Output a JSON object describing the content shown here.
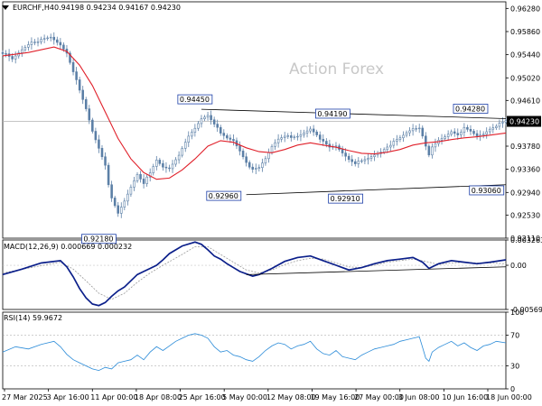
{
  "watermark": "Action Forex",
  "chart_data": [
    {
      "type": "candlestick",
      "symbol_header": "EURCHF,H4",
      "ohlc_header": "0.94198 0.94234 0.94167 0.94230",
      "ylim": [
        0.9211,
        0.964
      ],
      "y_ticks": [
        "0.96280",
        "0.95860",
        "0.95440",
        "0.95020",
        "0.94610",
        "0.94190",
        "0.93780",
        "0.93360",
        "0.92940",
        "0.92530",
        "0.92110"
      ],
      "current_price_label": "0.94230",
      "x_ticks": [
        "27 Mar 2025",
        "3 Apr 16:00",
        "11 Apr 00:00",
        "18 Apr 08:00",
        "25 Apr 16:00",
        "5 May 00:00",
        "12 May 08:00",
        "19 May 16:00",
        "27 May 00:00",
        "3 Jun 08:00",
        "10 Jun 16:00",
        "18 Jun 00:00"
      ],
      "price_labels": [
        "0.94450",
        "0.94190",
        "0.94280",
        "0.92960",
        "0.92910",
        "0.93060",
        "0.92180"
      ],
      "close_path": [
        [
          0,
          0.9548
        ],
        [
          3,
          0.9535
        ],
        [
          6,
          0.9553
        ],
        [
          9,
          0.9568
        ],
        [
          12,
          0.957
        ],
        [
          15,
          0.9575
        ],
        [
          18,
          0.9562
        ],
        [
          20,
          0.9548
        ],
        [
          22,
          0.9515
        ],
        [
          24,
          0.9478
        ],
        [
          26,
          0.9445
        ],
        [
          28,
          0.9405
        ],
        [
          30,
          0.9375
        ],
        [
          32,
          0.9345
        ],
        [
          33,
          0.931
        ],
        [
          34,
          0.9282
        ],
        [
          36,
          0.9255
        ],
        [
          38,
          0.9278
        ],
        [
          40,
          0.9304
        ],
        [
          42,
          0.9328
        ],
        [
          44,
          0.9312
        ],
        [
          46,
          0.9328
        ],
        [
          48,
          0.9352
        ],
        [
          50,
          0.934
        ],
        [
          52,
          0.9338
        ],
        [
          54,
          0.9355
        ],
        [
          56,
          0.9372
        ],
        [
          58,
          0.9395
        ],
        [
          60,
          0.941
        ],
        [
          62,
          0.9428
        ],
        [
          64,
          0.9435
        ],
        [
          66,
          0.942
        ],
        [
          68,
          0.94
        ],
        [
          70,
          0.9392
        ],
        [
          72,
          0.9388
        ],
        [
          74,
          0.937
        ],
        [
          76,
          0.935
        ],
        [
          78,
          0.9334
        ],
        [
          80,
          0.9338
        ],
        [
          82,
          0.9355
        ],
        [
          84,
          0.9378
        ],
        [
          86,
          0.9392
        ],
        [
          88,
          0.9398
        ],
        [
          90,
          0.9392
        ],
        [
          92,
          0.9395
        ],
        [
          94,
          0.9402
        ],
        [
          96,
          0.941
        ],
        [
          98,
          0.94
        ],
        [
          100,
          0.9385
        ],
        [
          102,
          0.9375
        ],
        [
          104,
          0.9378
        ],
        [
          106,
          0.9366
        ],
        [
          108,
          0.9355
        ],
        [
          110,
          0.9348
        ],
        [
          112,
          0.935
        ],
        [
          114,
          0.9355
        ],
        [
          116,
          0.9362
        ],
        [
          118,
          0.9368
        ],
        [
          120,
          0.9378
        ],
        [
          122,
          0.9385
        ],
        [
          124,
          0.9392
        ],
        [
          126,
          0.9402
        ],
        [
          128,
          0.941
        ],
        [
          130,
          0.9412
        ],
        [
          131,
          0.9398
        ],
        [
          132,
          0.938
        ],
        [
          133,
          0.936
        ],
        [
          134,
          0.9375
        ],
        [
          136,
          0.9388
        ],
        [
          138,
          0.9395
        ],
        [
          140,
          0.9405
        ],
        [
          142,
          0.94
        ],
        [
          144,
          0.941
        ],
        [
          146,
          0.9404
        ],
        [
          148,
          0.9396
        ],
        [
          150,
          0.94
        ],
        [
          152,
          0.941
        ],
        [
          154,
          0.9416
        ],
        [
          156,
          0.942
        ],
        [
          157,
          0.9423
        ]
      ],
      "ma_path": [
        [
          0,
          0.9542
        ],
        [
          8,
          0.9548
        ],
        [
          16,
          0.9558
        ],
        [
          20,
          0.955
        ],
        [
          24,
          0.9525
        ],
        [
          28,
          0.9488
        ],
        [
          32,
          0.944
        ],
        [
          36,
          0.9392
        ],
        [
          40,
          0.9355
        ],
        [
          44,
          0.933
        ],
        [
          48,
          0.9318
        ],
        [
          52,
          0.932
        ],
        [
          56,
          0.9335
        ],
        [
          60,
          0.9355
        ],
        [
          64,
          0.9378
        ],
        [
          68,
          0.9388
        ],
        [
          72,
          0.9385
        ],
        [
          76,
          0.9375
        ],
        [
          80,
          0.9368
        ],
        [
          84,
          0.9366
        ],
        [
          88,
          0.9372
        ],
        [
          92,
          0.938
        ],
        [
          96,
          0.9384
        ],
        [
          100,
          0.938
        ],
        [
          104,
          0.9376
        ],
        [
          108,
          0.937
        ],
        [
          112,
          0.9365
        ],
        [
          116,
          0.9364
        ],
        [
          120,
          0.9367
        ],
        [
          124,
          0.9372
        ],
        [
          128,
          0.938
        ],
        [
          132,
          0.9384
        ],
        [
          136,
          0.9386
        ],
        [
          140,
          0.939
        ],
        [
          144,
          0.9393
        ],
        [
          148,
          0.9395
        ],
        [
          152,
          0.9398
        ],
        [
          157,
          0.9402
        ]
      ],
      "upper_trendline": [
        [
          62,
          0.9445
        ],
        [
          157,
          0.9428
        ]
      ],
      "lower_trendline": [
        [
          76,
          0.929
        ],
        [
          157,
          0.9308
        ]
      ],
      "reference_line": 0.9423
    },
    {
      "type": "line",
      "header": "MACD(12,26,9) 0.000669 0.000232",
      "ylim": [
        -0.005699,
        0.003263
      ],
      "y_ticks": [
        "0.003263",
        "0.00",
        "-0.005699"
      ],
      "zero_label": "0.00",
      "macd_path": [
        [
          0,
          -0.0012
        ],
        [
          6,
          -0.0005
        ],
        [
          12,
          0.0003
        ],
        [
          18,
          0.0006
        ],
        [
          20,
          -0.0002
        ],
        [
          22,
          -0.0015
        ],
        [
          24,
          -0.003
        ],
        [
          26,
          -0.0042
        ],
        [
          28,
          -0.005
        ],
        [
          30,
          -0.0052
        ],
        [
          32,
          -0.0048
        ],
        [
          34,
          -0.004
        ],
        [
          36,
          -0.0033
        ],
        [
          38,
          -0.0028
        ],
        [
          40,
          -0.002
        ],
        [
          42,
          -0.0012
        ],
        [
          44,
          -0.0008
        ],
        [
          46,
          -0.0004
        ],
        [
          48,
          0.0
        ],
        [
          50,
          0.0007
        ],
        [
          52,
          0.0015
        ],
        [
          56,
          0.0025
        ],
        [
          60,
          0.003
        ],
        [
          62,
          0.0027
        ],
        [
          64,
          0.002
        ],
        [
          66,
          0.0012
        ],
        [
          68,
          0.0008
        ],
        [
          70,
          0.0002
        ],
        [
          74,
          -0.0008
        ],
        [
          78,
          -0.0014
        ],
        [
          80,
          -0.0012
        ],
        [
          84,
          -0.0004
        ],
        [
          88,
          0.0005
        ],
        [
          92,
          0.001
        ],
        [
          96,
          0.0012
        ],
        [
          100,
          0.0006
        ],
        [
          104,
          0.0
        ],
        [
          108,
          -0.0006
        ],
        [
          112,
          -0.0003
        ],
        [
          116,
          0.0002
        ],
        [
          120,
          0.0006
        ],
        [
          124,
          0.0008
        ],
        [
          128,
          0.001
        ],
        [
          131,
          0.0004
        ],
        [
          133,
          -0.0004
        ],
        [
          136,
          0.0002
        ],
        [
          140,
          0.0006
        ],
        [
          144,
          0.0004
        ],
        [
          148,
          0.0002
        ],
        [
          152,
          0.0004
        ],
        [
          157,
          0.0007
        ]
      ],
      "signal_path": [
        [
          0,
          -0.001
        ],
        [
          10,
          -0.0002
        ],
        [
          18,
          0.0004
        ],
        [
          22,
          -0.0005
        ],
        [
          26,
          -0.002
        ],
        [
          30,
          -0.0036
        ],
        [
          34,
          -0.0044
        ],
        [
          38,
          -0.0036
        ],
        [
          42,
          -0.0022
        ],
        [
          46,
          -0.001
        ],
        [
          50,
          0.0
        ],
        [
          56,
          0.0014
        ],
        [
          60,
          0.0024
        ],
        [
          64,
          0.0024
        ],
        [
          68,
          0.0014
        ],
        [
          72,
          0.0004
        ],
        [
          76,
          -0.0006
        ],
        [
          80,
          -0.001
        ],
        [
          84,
          -0.0006
        ],
        [
          88,
          0.0001
        ],
        [
          92,
          0.0006
        ],
        [
          96,
          0.0009
        ],
        [
          100,
          0.0008
        ],
        [
          104,
          0.0003
        ],
        [
          108,
          -0.0002
        ],
        [
          112,
          -0.0003
        ],
        [
          116,
          0.0
        ],
        [
          120,
          0.0004
        ],
        [
          124,
          0.0006
        ],
        [
          128,
          0.0008
        ],
        [
          132,
          0.0005
        ],
        [
          136,
          0.0001
        ],
        [
          140,
          0.0003
        ],
        [
          144,
          0.0004
        ],
        [
          148,
          0.0003
        ],
        [
          152,
          0.0003
        ],
        [
          157,
          0.0002
        ]
      ],
      "trendline": [
        [
          76,
          -0.0012
        ],
        [
          157,
          -0.0002
        ]
      ]
    },
    {
      "type": "line",
      "header": "RSI(14) 59.9672",
      "ylim": [
        0,
        100
      ],
      "y_ticks": [
        "100",
        "70",
        "30",
        "0"
      ],
      "levels": [
        70,
        30
      ],
      "rsi_path": [
        [
          0,
          48
        ],
        [
          4,
          55
        ],
        [
          8,
          52
        ],
        [
          12,
          58
        ],
        [
          16,
          62
        ],
        [
          18,
          55
        ],
        [
          20,
          45
        ],
        [
          22,
          38
        ],
        [
          24,
          34
        ],
        [
          26,
          30
        ],
        [
          28,
          26
        ],
        [
          30,
          24
        ],
        [
          32,
          28
        ],
        [
          34,
          26
        ],
        [
          36,
          34
        ],
        [
          38,
          36
        ],
        [
          40,
          38
        ],
        [
          42,
          44
        ],
        [
          44,
          38
        ],
        [
          46,
          48
        ],
        [
          48,
          55
        ],
        [
          50,
          50
        ],
        [
          52,
          56
        ],
        [
          54,
          62
        ],
        [
          56,
          66
        ],
        [
          58,
          70
        ],
        [
          60,
          72
        ],
        [
          62,
          70
        ],
        [
          64,
          66
        ],
        [
          66,
          55
        ],
        [
          68,
          48
        ],
        [
          70,
          50
        ],
        [
          72,
          44
        ],
        [
          74,
          42
        ],
        [
          76,
          38
        ],
        [
          78,
          36
        ],
        [
          80,
          42
        ],
        [
          82,
          50
        ],
        [
          84,
          56
        ],
        [
          86,
          60
        ],
        [
          88,
          58
        ],
        [
          90,
          52
        ],
        [
          92,
          56
        ],
        [
          94,
          58
        ],
        [
          96,
          62
        ],
        [
          98,
          52
        ],
        [
          100,
          46
        ],
        [
          102,
          44
        ],
        [
          104,
          50
        ],
        [
          106,
          42
        ],
        [
          108,
          40
        ],
        [
          110,
          38
        ],
        [
          112,
          44
        ],
        [
          114,
          48
        ],
        [
          116,
          52
        ],
        [
          118,
          54
        ],
        [
          120,
          56
        ],
        [
          122,
          58
        ],
        [
          124,
          62
        ],
        [
          126,
          64
        ],
        [
          128,
          66
        ],
        [
          130,
          68
        ],
        [
          131,
          54
        ],
        [
          132,
          40
        ],
        [
          133,
          36
        ],
        [
          134,
          48
        ],
        [
          136,
          54
        ],
        [
          138,
          58
        ],
        [
          140,
          62
        ],
        [
          142,
          56
        ],
        [
          144,
          60
        ],
        [
          146,
          54
        ],
        [
          148,
          50
        ],
        [
          150,
          56
        ],
        [
          152,
          58
        ],
        [
          154,
          62
        ],
        [
          157,
          60
        ]
      ]
    }
  ]
}
